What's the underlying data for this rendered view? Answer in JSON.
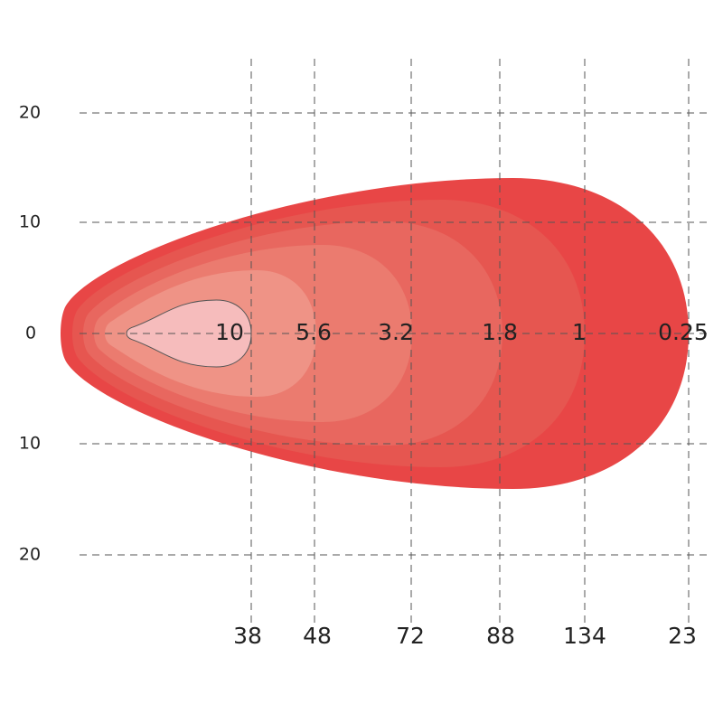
{
  "y_axis": {
    "labels": [
      "20",
      "10",
      "0",
      "10",
      "20"
    ]
  },
  "x_axis": {
    "labels": [
      "38",
      "48",
      "72",
      "88",
      "134",
      "23"
    ]
  },
  "contours": {
    "labels": [
      "10",
      "5.6",
      "3.2",
      "1.8",
      "1",
      "0.25"
    ]
  }
}
